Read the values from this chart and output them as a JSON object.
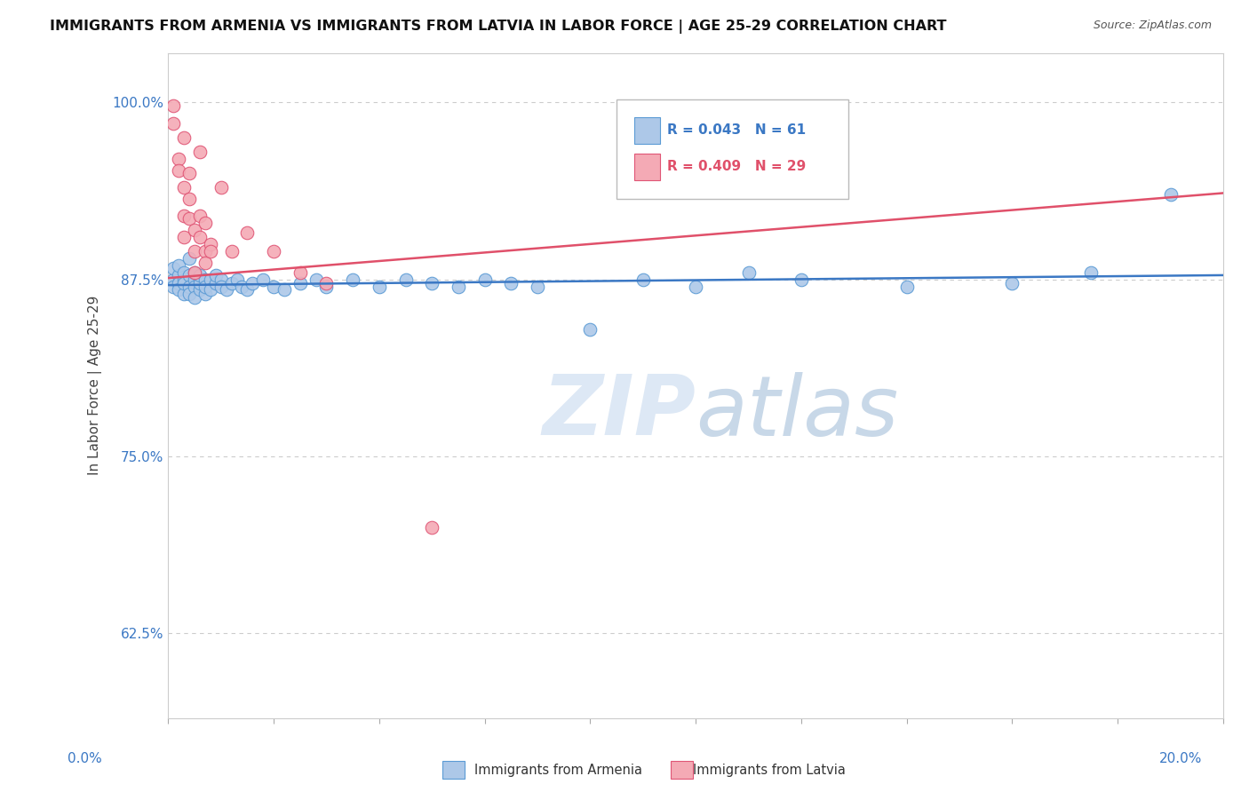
{
  "title": "IMMIGRANTS FROM ARMENIA VS IMMIGRANTS FROM LATVIA IN LABOR FORCE | AGE 25-29 CORRELATION CHART",
  "source": "Source: ZipAtlas.com",
  "ylabel": "In Labor Force | Age 25-29",
  "ytick_labels": [
    "62.5%",
    "75.0%",
    "87.5%",
    "100.0%"
  ],
  "ytick_vals": [
    0.625,
    0.75,
    0.875,
    1.0
  ],
  "xmin": 0.0,
  "xmax": 0.2,
  "ymin": 0.565,
  "ymax": 1.035,
  "armenia_R": 0.043,
  "armenia_N": 61,
  "latvia_R": 0.409,
  "latvia_N": 29,
  "armenia_color": "#adc8e8",
  "armenia_edge": "#5b9bd5",
  "latvia_color": "#f4aab5",
  "latvia_edge": "#e05575",
  "armenia_line_color": "#3b78c4",
  "latvia_line_color": "#e0506a",
  "watermark_zip": "ZIP",
  "watermark_atlas": "atlas",
  "background_color": "#ffffff",
  "grid_color": "#cccccc",
  "armenia_x": [
    0.001,
    0.001,
    0.001,
    0.002,
    0.002,
    0.002,
    0.002,
    0.003,
    0.003,
    0.003,
    0.003,
    0.004,
    0.004,
    0.004,
    0.004,
    0.005,
    0.005,
    0.005,
    0.005,
    0.006,
    0.006,
    0.006,
    0.006,
    0.007,
    0.007,
    0.007,
    0.008,
    0.008,
    0.009,
    0.009,
    0.01,
    0.01,
    0.011,
    0.012,
    0.013,
    0.014,
    0.015,
    0.016,
    0.018,
    0.02,
    0.022,
    0.025,
    0.028,
    0.03,
    0.035,
    0.04,
    0.045,
    0.05,
    0.055,
    0.06,
    0.065,
    0.07,
    0.08,
    0.09,
    0.1,
    0.11,
    0.12,
    0.14,
    0.16,
    0.175,
    0.19
  ],
  "armenia_y": [
    0.875,
    0.883,
    0.87,
    0.878,
    0.872,
    0.868,
    0.885,
    0.875,
    0.88,
    0.865,
    0.872,
    0.878,
    0.87,
    0.865,
    0.89,
    0.875,
    0.87,
    0.88,
    0.862,
    0.875,
    0.868,
    0.872,
    0.878,
    0.875,
    0.865,
    0.87,
    0.875,
    0.868,
    0.872,
    0.878,
    0.875,
    0.87,
    0.868,
    0.872,
    0.875,
    0.87,
    0.868,
    0.872,
    0.875,
    0.87,
    0.868,
    0.872,
    0.875,
    0.87,
    0.875,
    0.87,
    0.875,
    0.872,
    0.87,
    0.875,
    0.872,
    0.87,
    0.84,
    0.875,
    0.87,
    0.88,
    0.875,
    0.87,
    0.872,
    0.88,
    0.935
  ],
  "latvia_x": [
    0.001,
    0.001,
    0.002,
    0.002,
    0.003,
    0.003,
    0.003,
    0.003,
    0.004,
    0.004,
    0.004,
    0.005,
    0.005,
    0.005,
    0.006,
    0.006,
    0.006,
    0.007,
    0.007,
    0.007,
    0.008,
    0.008,
    0.01,
    0.012,
    0.015,
    0.02,
    0.025,
    0.03,
    0.05
  ],
  "latvia_y": [
    0.998,
    0.985,
    0.96,
    0.952,
    0.92,
    0.94,
    0.905,
    0.975,
    0.932,
    0.95,
    0.918,
    0.895,
    0.91,
    0.88,
    0.92,
    0.905,
    0.965,
    0.895,
    0.915,
    0.887,
    0.9,
    0.895,
    0.94,
    0.895,
    0.908,
    0.895,
    0.88,
    0.872,
    0.7
  ],
  "armenia_line_y0": 0.871,
  "armenia_line_y1": 0.878,
  "latvia_line_y0": 0.876,
  "latvia_line_y1": 0.936
}
